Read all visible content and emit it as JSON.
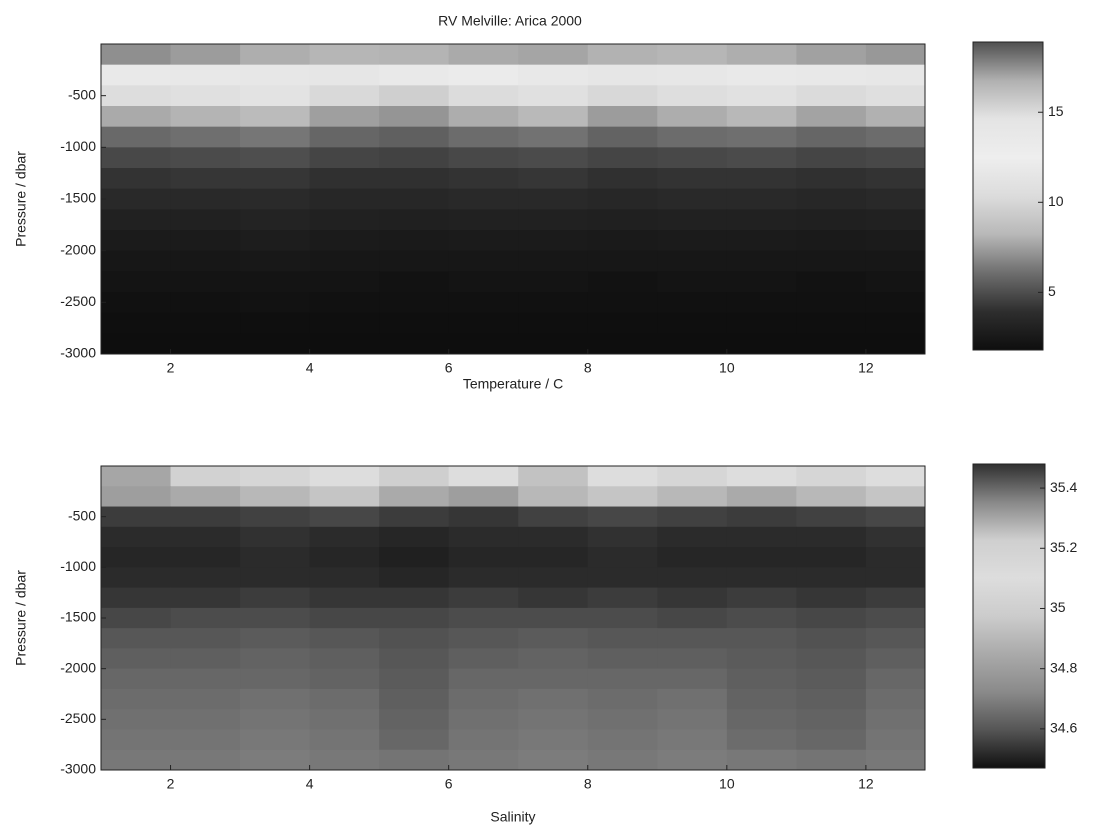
{
  "chart_data": [
    {
      "type": "heatmap",
      "title": "RV Melville: Arica 2000",
      "xlabel": "Temperature / C",
      "ylabel": "Pressure / dbar",
      "x": [
        1.5,
        2.5,
        3.5,
        4.5,
        5.5,
        6.5,
        7.5,
        8.5,
        9.5,
        10.5,
        11.5,
        12.5
      ],
      "y": [
        -100,
        -300,
        -500,
        -700,
        -900,
        -1100,
        -1300,
        -1500,
        -1700,
        -1900,
        -2100,
        -2300,
        -2500,
        -2700,
        -2900
      ],
      "z": [
        [
          17.5,
          17.2,
          16.8,
          16.5,
          16.6,
          16.9,
          17.0,
          16.7,
          16.5,
          16.8,
          17.1,
          17.3
        ],
        [
          13.5,
          13.8,
          14.0,
          14.2,
          13.6,
          13.2,
          13.8,
          14.1,
          13.9,
          13.5,
          13.7,
          14.0
        ],
        [
          10.5,
          10.8,
          11.2,
          10.2,
          9.6,
          10.4,
          10.8,
          10.1,
          10.6,
          10.9,
          10.3,
          10.7
        ],
        [
          7.8,
          8.1,
          8.4,
          7.5,
          7.2,
          7.9,
          8.3,
          7.4,
          7.9,
          8.2,
          7.6,
          8.0
        ],
        [
          5.9,
          6.1,
          6.3,
          5.8,
          5.6,
          6.0,
          6.2,
          5.7,
          6.0,
          6.1,
          5.8,
          6.0
        ],
        [
          4.8,
          4.9,
          5.0,
          4.7,
          4.6,
          4.8,
          4.9,
          4.7,
          4.8,
          4.9,
          4.7,
          4.8
        ],
        [
          4.1,
          4.2,
          4.2,
          4.0,
          4.0,
          4.1,
          4.2,
          4.0,
          4.1,
          4.1,
          4.0,
          4.1
        ],
        [
          3.6,
          3.6,
          3.7,
          3.5,
          3.5,
          3.6,
          3.6,
          3.5,
          3.6,
          3.6,
          3.5,
          3.6
        ],
        [
          3.1,
          3.1,
          3.2,
          3.1,
          3.0,
          3.1,
          3.1,
          3.0,
          3.1,
          3.1,
          3.0,
          3.1
        ],
        [
          2.7,
          2.7,
          2.8,
          2.7,
          2.6,
          2.7,
          2.7,
          2.6,
          2.7,
          2.7,
          2.6,
          2.7
        ],
        [
          2.4,
          2.4,
          2.5,
          2.4,
          2.4,
          2.4,
          2.4,
          2.4,
          2.4,
          2.4,
          2.4,
          2.4
        ],
        [
          2.2,
          2.2,
          2.2,
          2.2,
          2.1,
          2.2,
          2.2,
          2.1,
          2.2,
          2.2,
          2.1,
          2.2
        ],
        [
          2.0,
          2.0,
          2.1,
          2.0,
          2.0,
          2.0,
          2.0,
          2.0,
          2.0,
          2.0,
          2.0,
          2.0
        ],
        [
          1.9,
          1.9,
          1.9,
          1.9,
          1.9,
          1.9,
          1.9,
          1.9,
          1.9,
          1.9,
          1.9,
          1.9
        ],
        [
          1.8,
          1.8,
          1.8,
          1.8,
          1.8,
          1.8,
          1.8,
          1.8,
          1.8,
          1.8,
          1.8,
          1.8
        ]
      ],
      "xlim": [
        1,
        12.85
      ],
      "ylim": [
        -3000,
        0
      ],
      "xticks": [
        2,
        4,
        6,
        8,
        10,
        12
      ],
      "yticks": [
        -500,
        -1000,
        -1500,
        -2000,
        -2500,
        -3000
      ],
      "clim": [
        1.8,
        18.9
      ],
      "cticks": [
        5,
        10,
        15
      ],
      "colormap": [
        "#0e0e0e",
        "#2e2e2e",
        "#6e6e6e",
        "#b8b8b8",
        "#dcdcdc",
        "#eeeeee",
        "#e4e4e4",
        "#b0b0b0",
        "#505050"
      ]
    },
    {
      "type": "heatmap",
      "xlabel": "Salinity",
      "ylabel": "Pressure / dbar",
      "x": [
        1.5,
        2.5,
        3.5,
        4.5,
        5.5,
        6.5,
        7.5,
        8.5,
        9.5,
        10.5,
        11.5,
        12.5
      ],
      "y": [
        -100,
        -300,
        -500,
        -700,
        -900,
        -1100,
        -1300,
        -1500,
        -1700,
        -1900,
        -2100,
        -2300,
        -2500,
        -2700,
        -2900
      ],
      "z": [
        [
          35.3,
          35.2,
          35.05,
          35.1,
          35.0,
          35.1,
          35.25,
          35.1,
          35.05,
          35.1,
          35.05,
          35.1
        ],
        [
          34.8,
          34.85,
          34.9,
          34.95,
          34.85,
          34.8,
          34.9,
          34.95,
          34.9,
          34.85,
          34.9,
          34.95
        ],
        [
          34.55,
          34.55,
          34.56,
          34.57,
          34.55,
          34.54,
          34.56,
          34.57,
          34.56,
          34.55,
          34.56,
          34.57
        ],
        [
          34.52,
          34.52,
          34.53,
          34.52,
          34.51,
          34.52,
          34.52,
          34.53,
          34.52,
          34.52,
          34.52,
          34.53
        ],
        [
          34.51,
          34.51,
          34.52,
          34.51,
          34.5,
          34.51,
          34.51,
          34.52,
          34.51,
          34.51,
          34.51,
          34.52
        ],
        [
          34.52,
          34.52,
          34.52,
          34.52,
          34.51,
          34.52,
          34.52,
          34.52,
          34.52,
          34.52,
          34.52,
          34.52
        ],
        [
          34.54,
          34.54,
          34.55,
          34.54,
          34.54,
          34.55,
          34.54,
          34.55,
          34.54,
          34.55,
          34.54,
          34.55
        ],
        [
          34.57,
          34.58,
          34.58,
          34.57,
          34.57,
          34.58,
          34.58,
          34.58,
          34.57,
          34.58,
          34.57,
          34.58
        ],
        [
          34.6,
          34.6,
          34.61,
          34.6,
          34.59,
          34.6,
          34.61,
          34.6,
          34.6,
          34.6,
          34.59,
          34.6
        ],
        [
          34.62,
          34.62,
          34.63,
          34.62,
          34.6,
          34.62,
          34.63,
          34.62,
          34.62,
          34.61,
          34.6,
          34.62
        ],
        [
          34.64,
          34.64,
          34.64,
          34.63,
          34.61,
          34.64,
          34.64,
          34.64,
          34.64,
          34.62,
          34.61,
          34.64
        ],
        [
          34.65,
          34.65,
          34.66,
          34.65,
          34.62,
          34.65,
          34.66,
          34.65,
          34.66,
          34.63,
          34.62,
          34.65
        ],
        [
          34.66,
          34.66,
          34.67,
          34.66,
          34.63,
          34.66,
          34.67,
          34.66,
          34.67,
          34.64,
          34.63,
          34.66
        ],
        [
          34.67,
          34.67,
          34.68,
          34.67,
          34.64,
          34.67,
          34.68,
          34.67,
          34.68,
          34.65,
          34.64,
          34.67
        ],
        [
          34.68,
          34.68,
          34.69,
          34.68,
          34.67,
          34.68,
          34.69,
          34.68,
          34.69,
          34.68,
          34.67,
          34.68
        ]
      ],
      "xlim": [
        1,
        12.85
      ],
      "ylim": [
        -3000,
        0
      ],
      "xticks": [
        2,
        4,
        6,
        8,
        10,
        12
      ],
      "yticks": [
        -500,
        -1000,
        -1500,
        -2000,
        -2500,
        -3000
      ],
      "clim": [
        34.47,
        35.48
      ],
      "cticks": [
        34.6,
        34.8,
        35,
        35.2,
        35.4
      ],
      "colormap": [
        "#101010",
        "#555555",
        "#8a8a8a",
        "#aaaaaa",
        "#cccccc",
        "#dddddd",
        "#cfcfcf",
        "#888888",
        "#303030"
      ]
    }
  ]
}
